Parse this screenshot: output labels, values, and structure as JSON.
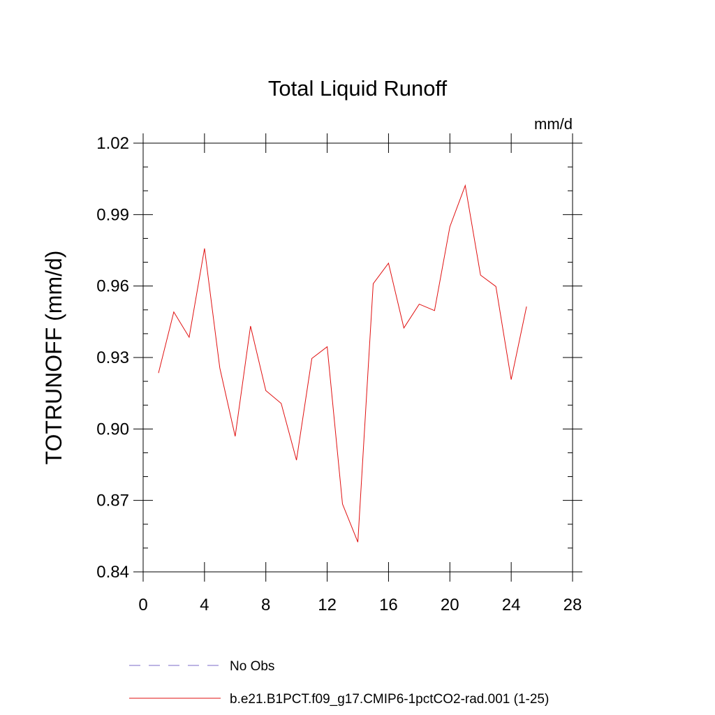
{
  "chart_data": {
    "type": "line",
    "title": "Total Liquid Runoff",
    "units": "mm/d",
    "ylabel": "TOTRUNOFF  (mm/d)",
    "xlabel": "",
    "xlim": [
      0,
      28
    ],
    "ylim": [
      0.84,
      1.02
    ],
    "x_ticks": [
      "0",
      "4",
      "8",
      "12",
      "16",
      "20",
      "24",
      "28"
    ],
    "y_ticks": [
      "0.84",
      "0.87",
      "0.90",
      "0.93",
      "0.96",
      "0.99",
      "1.02"
    ],
    "grid": false,
    "legend_position": "bottom",
    "series": [
      {
        "name": "No Obs",
        "style": "dashed",
        "color": "#7b68c8",
        "x": [],
        "y": []
      },
      {
        "name": "b.e21.B1PCT.f09_g17.CMIP6-1pctCO2-rad.001 (1-25)",
        "style": "solid",
        "color": "#e01010",
        "x": [
          1,
          2,
          3,
          4,
          5,
          6,
          7,
          8,
          9,
          10,
          11,
          12,
          13,
          14,
          15,
          16,
          17,
          18,
          19,
          20,
          21,
          22,
          23,
          24,
          25
        ],
        "y": [
          0.9235,
          0.9491,
          0.9385,
          0.9758,
          0.9256,
          0.8969,
          0.9432,
          0.9161,
          0.9107,
          0.8869,
          0.9296,
          0.9345,
          0.8685,
          0.8525,
          0.961,
          0.9696,
          0.9424,
          0.9524,
          0.9497,
          0.9849,
          1.0022,
          0.9646,
          0.9598,
          0.9207,
          0.9514
        ]
      }
    ]
  }
}
